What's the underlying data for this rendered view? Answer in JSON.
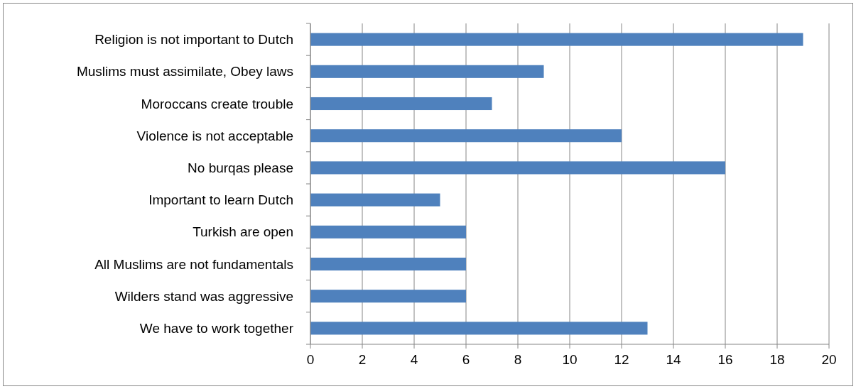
{
  "chart_data": {
    "type": "bar",
    "orientation": "horizontal",
    "categories": [
      "Religion is not important to Dutch",
      "Muslims must assimilate, Obey laws",
      "Moroccans create trouble",
      "Violence is not acceptable",
      "No burqas please",
      "Important to learn Dutch",
      "Turkish are open",
      "All Muslims are not fundamentals",
      "Wilders stand was aggressive",
      "We have to work together"
    ],
    "values": [
      19,
      9,
      7,
      12,
      16,
      5,
      6,
      6,
      6,
      13
    ],
    "color": "#4f81bd",
    "xlim": [
      0,
      20
    ],
    "xticks": [
      0,
      2,
      4,
      6,
      8,
      10,
      12,
      14,
      16,
      18,
      20
    ],
    "grid": "x"
  }
}
